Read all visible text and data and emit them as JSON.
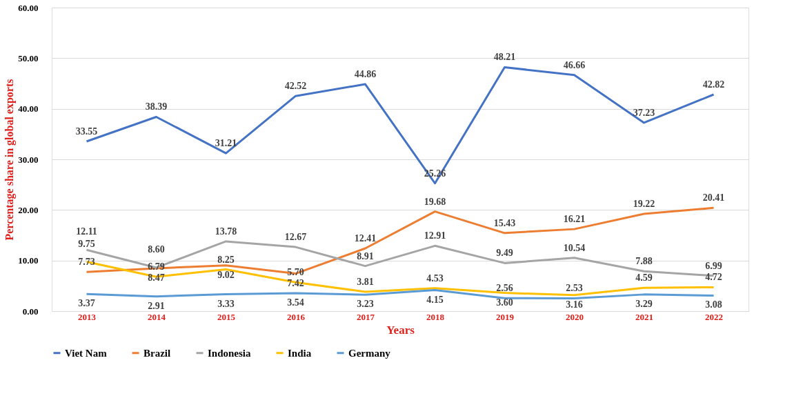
{
  "chart_data": {
    "type": "line",
    "xlabel": "Years",
    "ylabel": "Percentage share in global exports",
    "categories": [
      "2013",
      "2014",
      "2015",
      "2016",
      "2017",
      "2018",
      "2019",
      "2020",
      "2021",
      "2022"
    ],
    "series": [
      {
        "name": "Viet Nam",
        "color": "#4472c4",
        "values": [
          33.55,
          38.39,
          31.21,
          42.52,
          44.86,
          25.26,
          48.21,
          46.66,
          37.23,
          42.82
        ],
        "value_labels": [
          "33.55",
          "38.39",
          "31.21",
          "42.52",
          "44.86",
          "25.26",
          "48.21",
          "46.66",
          "37.23",
          "42.82"
        ]
      },
      {
        "name": "Brazil",
        "color": "#ed7d31",
        "values": [
          7.73,
          8.47,
          9.02,
          7.42,
          12.41,
          19.68,
          15.43,
          16.21,
          19.22,
          20.41
        ],
        "value_labels": [
          "7.73",
          "8.47",
          "9.02",
          "7.42",
          "12.41",
          "19.68",
          "15.43",
          "16.21",
          "19.22",
          "20.41"
        ]
      },
      {
        "name": "Indonesia",
        "color": "#a5a5a5",
        "values": [
          12.11,
          8.6,
          13.78,
          12.67,
          8.91,
          12.91,
          9.49,
          10.54,
          7.88,
          6.99
        ],
        "value_labels": [
          "12.11",
          "8.60",
          "13.78",
          "12.67",
          "8.91",
          "12.91",
          "9.49",
          "10.54",
          "7.88",
          "6.99"
        ]
      },
      {
        "name": "India",
        "color": "#ffc000",
        "values": [
          9.75,
          6.79,
          8.25,
          5.7,
          3.81,
          4.53,
          3.6,
          3.16,
          4.59,
          4.72
        ],
        "value_labels": [
          "9.75",
          "6.79",
          "8.25",
          "5.70",
          "3.81",
          "4.53",
          "3.60",
          "3.16",
          "4.59",
          "4.72"
        ]
      },
      {
        "name": "Germany",
        "color": "#5b9bd5",
        "values": [
          3.37,
          2.91,
          3.33,
          3.54,
          3.23,
          4.15,
          2.56,
          2.53,
          3.29,
          3.08
        ],
        "value_labels": [
          "3.37",
          "2.91",
          "3.33",
          "3.54",
          "3.23",
          "4.15",
          "2.56",
          "2.53",
          "3.29",
          "3.08"
        ]
      }
    ],
    "ylim": [
      0,
      60
    ],
    "yticks": [
      {
        "value": 0,
        "label": "0.00"
      },
      {
        "value": 10,
        "label": "10.00"
      },
      {
        "value": 20,
        "label": "20.00"
      },
      {
        "value": 30,
        "label": "30.00"
      },
      {
        "value": 40,
        "label": "40.00"
      },
      {
        "value": 50,
        "label": "50.00"
      },
      {
        "value": 60,
        "label": "60.00"
      }
    ],
    "grid": "y",
    "legend": "bottom",
    "marker": "none",
    "line_style": "solid"
  }
}
